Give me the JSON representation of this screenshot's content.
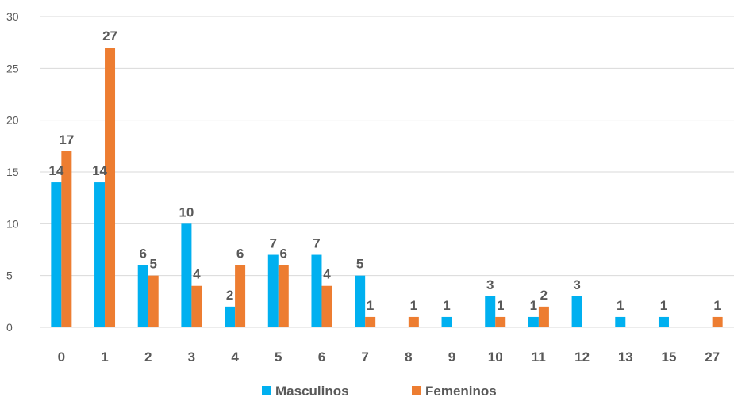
{
  "chart_data": {
    "type": "bar",
    "categories": [
      "0",
      "1",
      "2",
      "3",
      "4",
      "5",
      "6",
      "7",
      "8",
      "9",
      "10",
      "11",
      "12",
      "13",
      "15",
      "27"
    ],
    "series": [
      {
        "name": "Masculinos",
        "color": "#00B0F0",
        "values": [
          14,
          14,
          6,
          10,
          2,
          7,
          7,
          5,
          0,
          1,
          3,
          1,
          3,
          1,
          1,
          0
        ]
      },
      {
        "name": "Femeninos",
        "color": "#ED7D31",
        "values": [
          17,
          27,
          5,
          4,
          6,
          6,
          4,
          1,
          1,
          0,
          1,
          2,
          0,
          0,
          0,
          1
        ]
      }
    ],
    "ylim": [
      0,
      30
    ],
    "yticks": [
      0,
      5,
      10,
      15,
      20,
      25,
      30
    ],
    "grid": true,
    "legend": "bottom",
    "data_labels": true,
    "title": "",
    "xlabel": "",
    "ylabel": ""
  }
}
